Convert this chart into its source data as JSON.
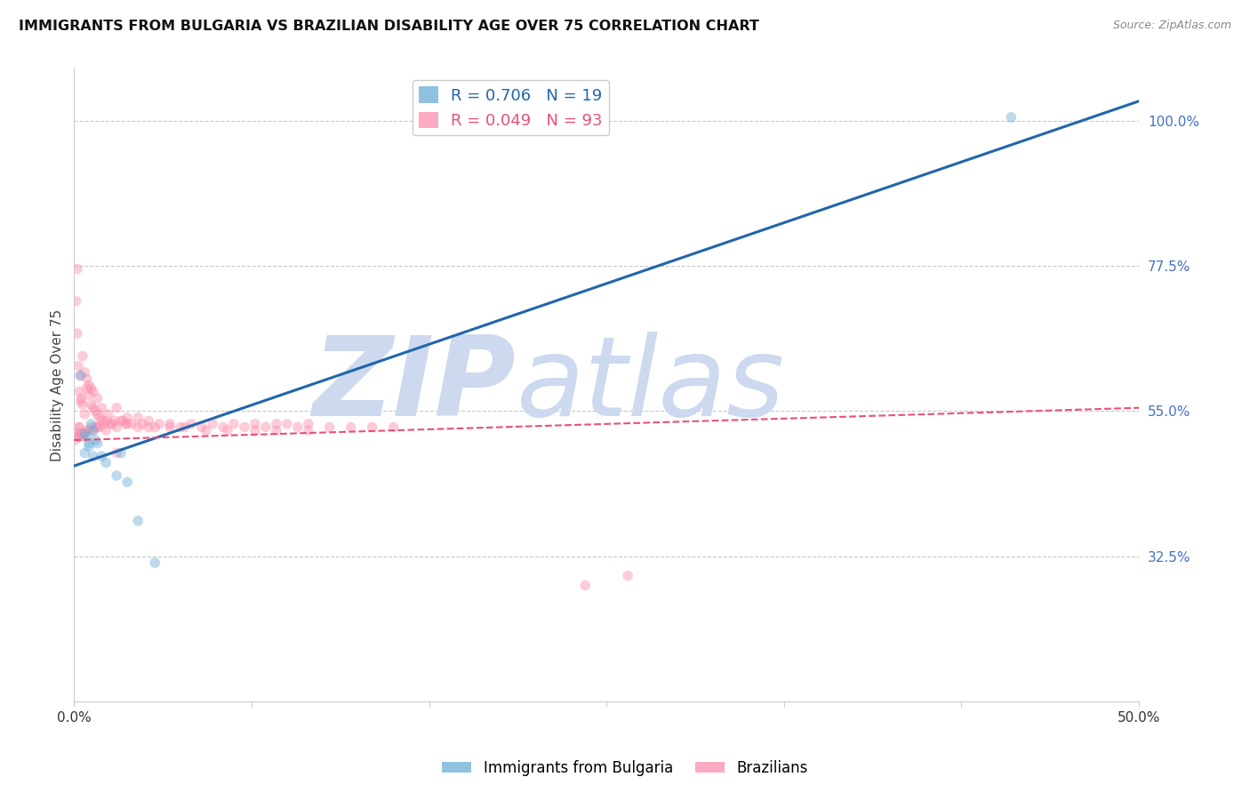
{
  "title": "IMMIGRANTS FROM BULGARIA VS BRAZILIAN DISABILITY AGE OVER 75 CORRELATION CHART",
  "source": "Source: ZipAtlas.com",
  "ylabel": "Disability Age Over 75",
  "xlim": [
    0.0,
    50.0
  ],
  "ylim": [
    10.0,
    108.0
  ],
  "y_ticks": [
    32.5,
    55.0,
    77.5,
    100.0
  ],
  "y_tick_labels": [
    "32.5%",
    "55.0%",
    "77.5%",
    "100.0%"
  ],
  "x_ticks": [
    0.0,
    8.333,
    16.667,
    25.0,
    33.333,
    41.667,
    50.0
  ],
  "x_tick_labels": [
    "0.0%",
    "",
    "",
    "",
    "",
    "",
    "50.0%"
  ],
  "bulgaria_scatter_x": [
    0.3,
    0.5,
    0.6,
    0.7,
    0.8,
    0.9,
    1.0,
    1.1,
    1.3,
    1.5,
    2.0,
    2.5,
    3.0,
    0.5,
    0.7,
    0.9,
    44.0,
    2.2,
    3.8
  ],
  "bulgaria_scatter_y": [
    60.5,
    51.5,
    51.0,
    50.0,
    53.0,
    52.0,
    50.5,
    50.0,
    48.0,
    47.0,
    45.0,
    44.0,
    38.0,
    48.5,
    49.5,
    48.0,
    100.5,
    48.5,
    31.5
  ],
  "brazil_scatter_x": [
    0.05,
    0.1,
    0.1,
    0.15,
    0.15,
    0.2,
    0.2,
    0.25,
    0.25,
    0.3,
    0.3,
    0.35,
    0.35,
    0.4,
    0.4,
    0.5,
    0.5,
    0.6,
    0.6,
    0.7,
    0.7,
    0.8,
    0.8,
    0.9,
    0.9,
    1.0,
    1.0,
    1.1,
    1.1,
    1.2,
    1.2,
    1.3,
    1.4,
    1.5,
    1.5,
    1.7,
    1.8,
    2.0,
    2.0,
    2.2,
    2.4,
    2.5,
    2.5,
    3.0,
    3.0,
    3.5,
    3.5,
    4.0,
    4.5,
    5.0,
    5.5,
    6.0,
    6.5,
    7.0,
    7.5,
    8.0,
    8.5,
    9.0,
    9.5,
    10.0,
    10.5,
    11.0,
    12.0,
    13.0,
    14.0,
    15.0,
    2.0,
    0.2,
    0.3,
    0.4,
    0.5,
    0.6,
    0.7,
    0.8,
    0.9,
    1.1,
    1.3,
    1.6,
    1.9,
    2.3,
    2.7,
    3.2,
    3.8,
    4.5,
    5.2,
    6.2,
    7.2,
    8.5,
    9.5,
    11.0,
    24.0,
    26.0,
    0.15
  ],
  "brazil_scatter_y": [
    50.5,
    72.0,
    51.5,
    67.0,
    51.0,
    52.5,
    51.0,
    58.0,
    52.5,
    56.5,
    51.5,
    57.0,
    51.5,
    56.0,
    51.0,
    54.5,
    51.5,
    58.5,
    52.0,
    57.5,
    52.0,
    56.0,
    52.5,
    55.5,
    52.0,
    55.0,
    52.5,
    54.5,
    52.5,
    54.0,
    52.5,
    53.5,
    53.0,
    53.5,
    52.0,
    53.0,
    53.0,
    55.5,
    52.5,
    53.5,
    53.0,
    54.0,
    53.0,
    54.0,
    52.5,
    53.5,
    52.5,
    53.0,
    53.0,
    52.5,
    53.0,
    52.5,
    53.0,
    52.5,
    53.0,
    52.5,
    53.0,
    52.5,
    53.0,
    53.0,
    52.5,
    53.0,
    52.5,
    52.5,
    52.5,
    52.5,
    48.5,
    62.0,
    60.5,
    63.5,
    61.0,
    60.0,
    59.0,
    58.5,
    58.0,
    57.0,
    55.5,
    54.5,
    53.5,
    53.5,
    53.0,
    53.0,
    52.5,
    52.5,
    52.5,
    52.0,
    52.0,
    52.0,
    52.0,
    52.0,
    28.0,
    29.5,
    77.0
  ],
  "bulgaria_line_x": [
    0.0,
    50.0
  ],
  "bulgaria_line_y": [
    46.5,
    103.0
  ],
  "brazil_line_x": [
    0.0,
    50.0
  ],
  "brazil_line_y": [
    50.5,
    55.5
  ],
  "scatter_alpha": 0.45,
  "scatter_size": 70,
  "blue_color": "#6baed6",
  "pink_color": "#fc8eac",
  "blue_line_color": "#2166ac",
  "pink_line_color": "#e8507a",
  "grid_color": "#c8c8c8",
  "right_axis_color": "#4472c4",
  "background_color": "#ffffff",
  "watermark_zip": "ZIP",
  "watermark_atlas": "atlas",
  "watermark_color": "#ccd9ee"
}
